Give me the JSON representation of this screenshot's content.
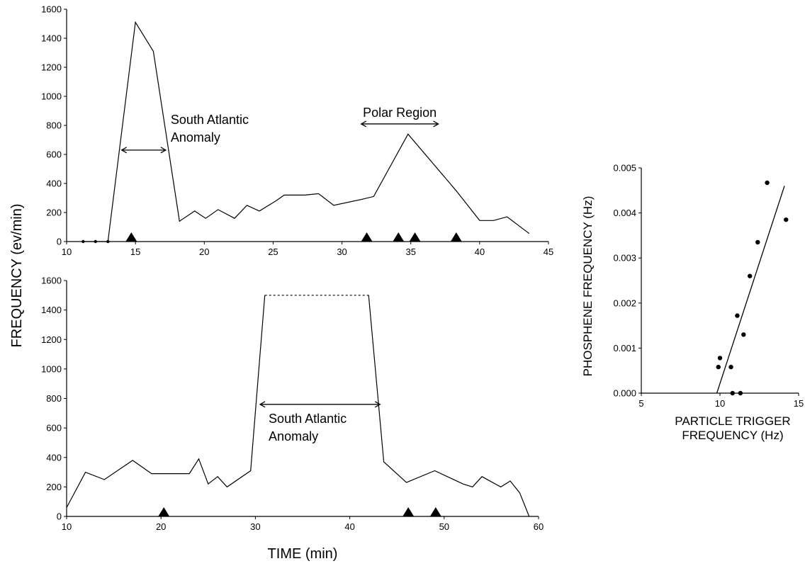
{
  "figure": {
    "shared_ylabel": "FREQUENCY (ev/min)",
    "shared_xlabel": "TIME (min)"
  },
  "chart_data": [
    {
      "type": "line",
      "xlim": [
        10,
        45
      ],
      "ylim": [
        0,
        1600
      ],
      "x_ticks": [
        10,
        15,
        20,
        25,
        30,
        35,
        40,
        45
      ],
      "y_ticks": [
        0,
        200,
        400,
        600,
        800,
        1000,
        1200,
        1400,
        1600
      ],
      "grid": false,
      "series": [
        {
          "x": [
            11.2,
            12.1,
            13.0,
            15.0,
            16.3,
            18.2,
            19.3,
            20.1,
            21.0,
            22.2,
            23.1,
            24.0,
            25.2,
            25.8,
            27.3,
            28.3,
            29.4,
            31.4,
            32.3,
            34.8,
            38.3,
            40.0,
            41.0,
            42.0,
            43.6
          ],
          "y": [
            0,
            0,
            0,
            1510,
            1310,
            140,
            210,
            160,
            220,
            160,
            250,
            210,
            280,
            320,
            320,
            330,
            250,
            290,
            310,
            740,
            350,
            145,
            145,
            170,
            55
          ]
        }
      ],
      "event_markers_x": [
        14.7,
        31.8,
        34.1,
        35.3,
        38.3
      ],
      "annotations": [
        {
          "text": [
            "South Atlantic",
            "Anomaly"
          ],
          "range": [
            14.0,
            17.2
          ],
          "y": 630
        },
        {
          "text": [
            "Polar Region"
          ],
          "range": [
            31.4,
            37.0
          ],
          "y": 810
        }
      ]
    },
    {
      "type": "line",
      "xlim": [
        10,
        60
      ],
      "ylim": [
        0,
        1600
      ],
      "x_ticks": [
        10,
        20,
        30,
        40,
        50,
        60
      ],
      "y_ticks": [
        0,
        200,
        400,
        600,
        800,
        1000,
        1200,
        1400,
        1600
      ],
      "grid": false,
      "series": [
        {
          "x": [
            10,
            12,
            14,
            17,
            19,
            23,
            24,
            25,
            26,
            27,
            29.5,
            31,
            42,
            43.6,
            46,
            49,
            52,
            53,
            54,
            56,
            57,
            58,
            59
          ],
          "y": [
            60,
            300,
            250,
            380,
            290,
            290,
            390,
            220,
            270,
            200,
            310,
            1500,
            1500,
            370,
            230,
            310,
            220,
            200,
            270,
            200,
            240,
            160,
            0
          ]
        }
      ],
      "dashed_segment": {
        "x": [
          31,
          42
        ],
        "y": [
          1500,
          1500
        ]
      },
      "event_markers_x": [
        20.3,
        46.2,
        49.1
      ],
      "annotations": [
        {
          "text": [
            "South Atlantic",
            "Anomaly"
          ],
          "range": [
            30.5,
            43.2
          ],
          "y": 760
        }
      ]
    },
    {
      "type": "scatter",
      "xlabel": [
        "PARTICLE TRIGGER",
        "FREQUENCY (Hz)"
      ],
      "ylabel": "PHOSPHENE FREQUENCY (Hz)",
      "xlim": [
        5,
        15
      ],
      "ylim": [
        0,
        0.005
      ],
      "x_ticks": [
        "5",
        "10",
        "15"
      ],
      "y_ticks": [
        "0.000",
        "0.001",
        "0.002",
        "0.003",
        "0.004",
        "0.005"
      ],
      "grid": false,
      "points": [
        {
          "x": 9.9,
          "y": 0.00058
        },
        {
          "x": 10.0,
          "y": 0.00078
        },
        {
          "x": 10.7,
          "y": 0.00058
        },
        {
          "x": 10.8,
          "y": 0.0
        },
        {
          "x": 11.1,
          "y": 0.00172
        },
        {
          "x": 11.3,
          "y": 0.0
        },
        {
          "x": 11.5,
          "y": 0.0013
        },
        {
          "x": 11.9,
          "y": 0.0026
        },
        {
          "x": 12.4,
          "y": 0.00335
        },
        {
          "x": 13.0,
          "y": 0.00467
        },
        {
          "x": 14.2,
          "y": 0.00385
        }
      ],
      "fit_line": {
        "x": [
          9.8,
          14.1
        ],
        "y": [
          0.0,
          0.0046
        ]
      }
    }
  ]
}
